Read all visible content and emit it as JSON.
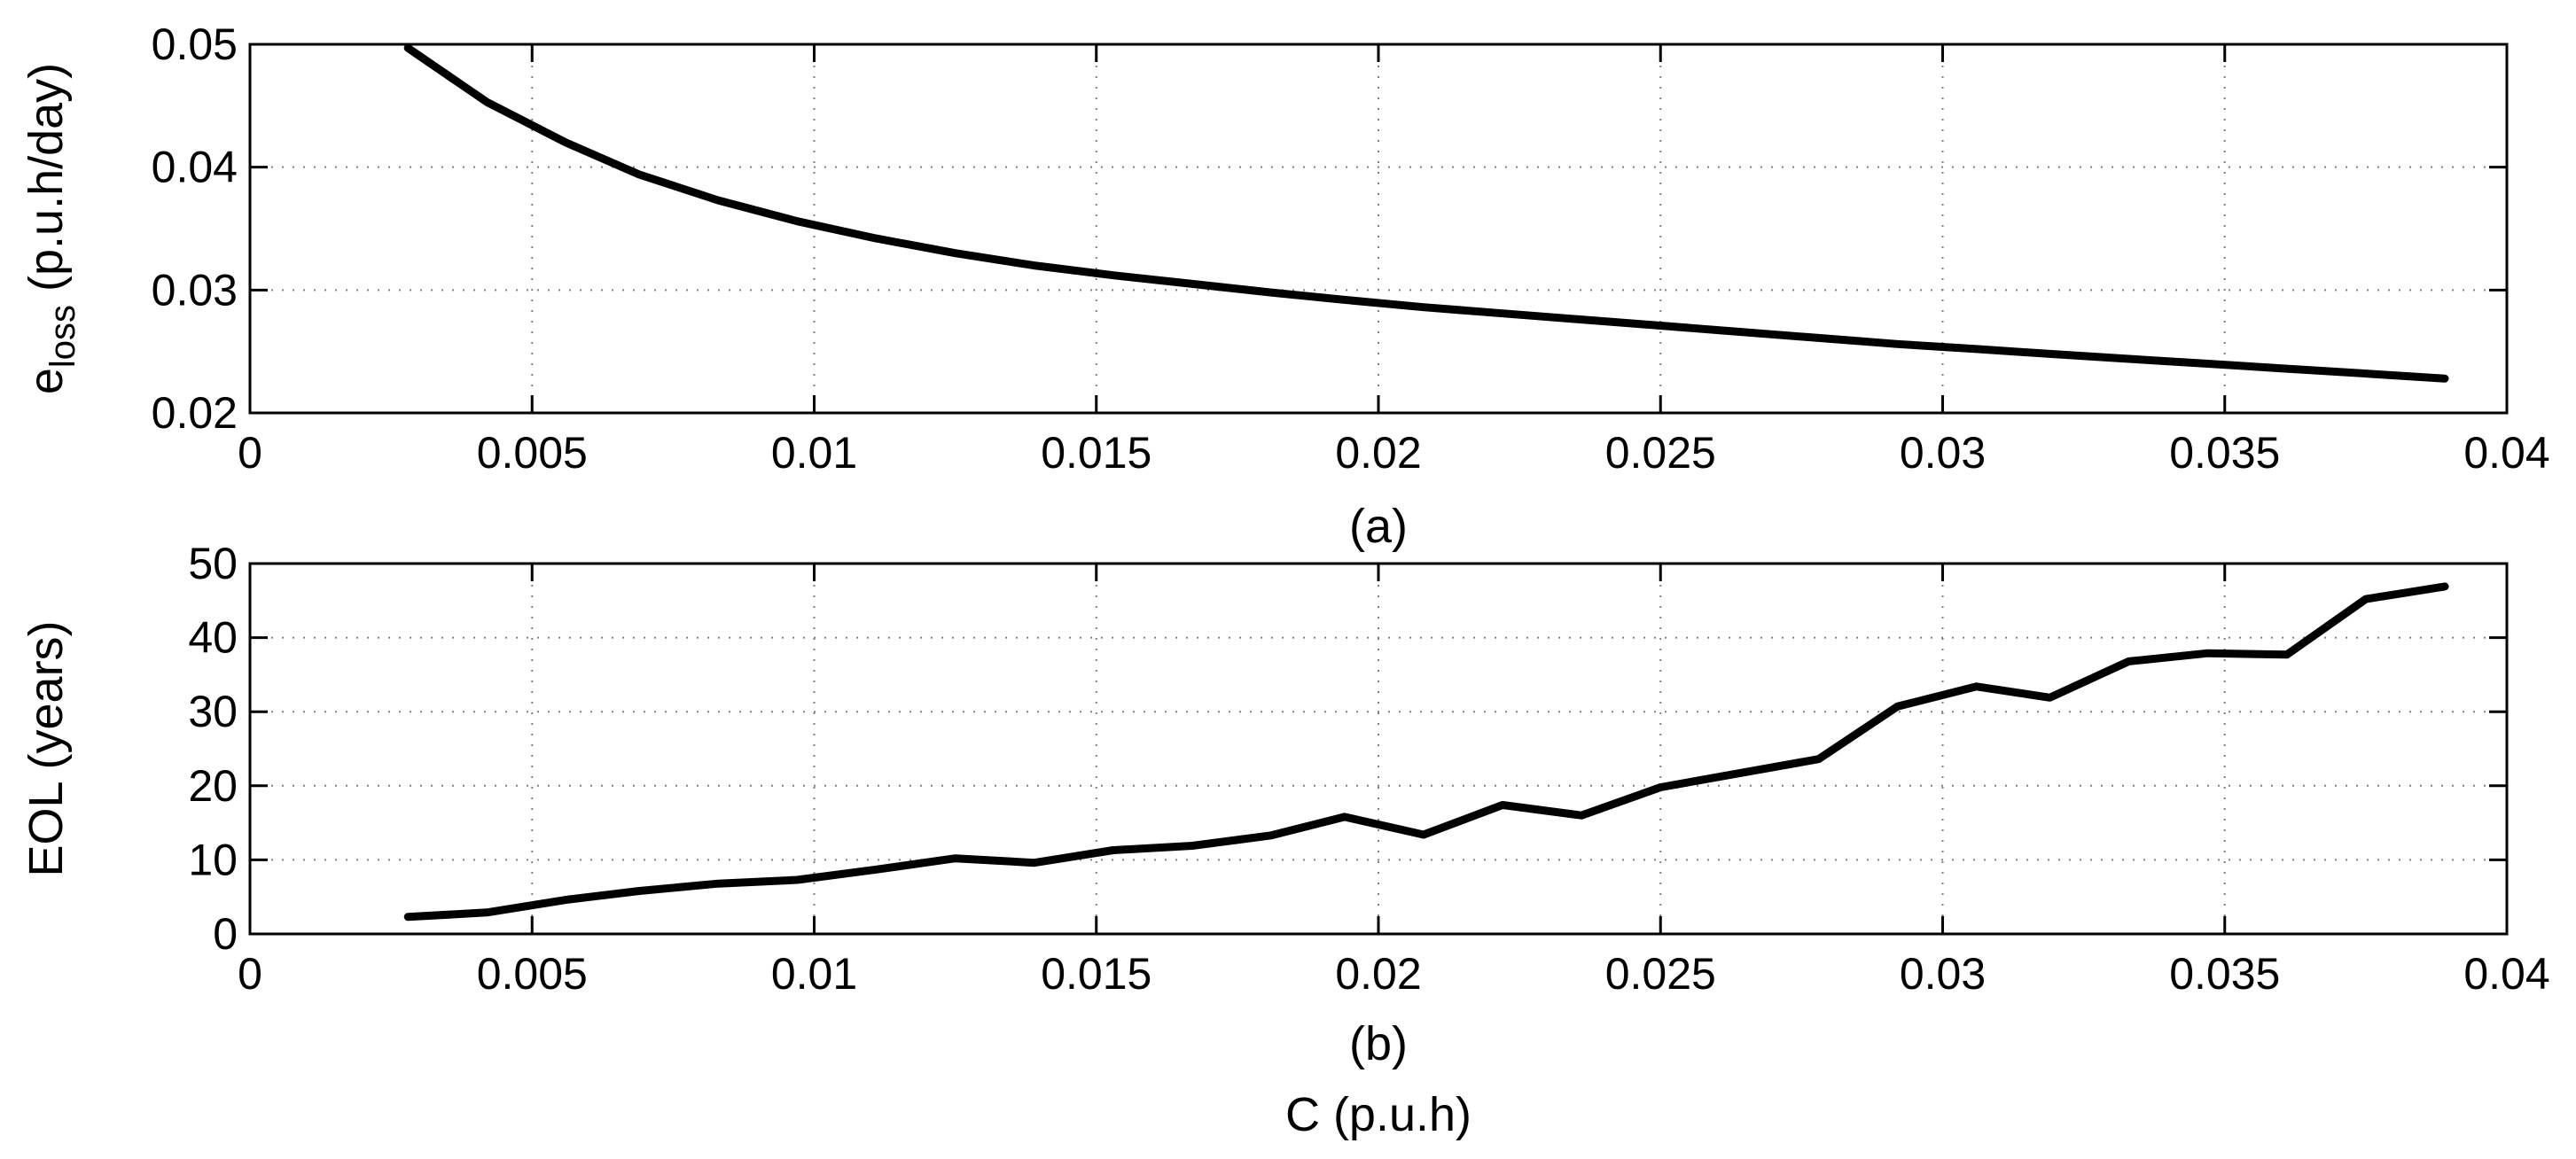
{
  "chart_data": [
    {
      "type": "line",
      "caption": "(a)",
      "ylabel_main": "e",
      "ylabel_sub": "loss",
      "ylabel_unit": " (p.u.h/day)",
      "xlim": [
        0,
        0.04
      ],
      "ylim": [
        0.02,
        0.05
      ],
      "xticks": [
        0,
        0.005,
        0.01,
        0.015,
        0.02,
        0.025,
        0.03,
        0.035,
        0.04
      ],
      "xtick_labels": [
        "0",
        "0.005",
        "0.01",
        "0.015",
        "0.02",
        "0.025",
        "0.03",
        "0.035",
        "0.04"
      ],
      "yticks": [
        0.02,
        0.03,
        0.04,
        0.05
      ],
      "ytick_labels": [
        "0.02",
        "0.03",
        "0.04",
        "0.05"
      ],
      "grid": true,
      "color": "#000000",
      "x": [
        0.0028,
        0.0042,
        0.0056,
        0.0069,
        0.0083,
        0.0097,
        0.0111,
        0.0125,
        0.0139,
        0.0153,
        0.0167,
        0.0181,
        0.0194,
        0.0208,
        0.0222,
        0.0236,
        0.025,
        0.0264,
        0.0278,
        0.0292,
        0.0306,
        0.0319,
        0.0333,
        0.0347,
        0.0361,
        0.0375,
        0.0389
      ],
      "y": [
        0.0497,
        0.0453,
        0.042,
        0.0394,
        0.0373,
        0.0356,
        0.0342,
        0.033,
        0.032,
        0.0312,
        0.0305,
        0.0298,
        0.0292,
        0.0286,
        0.0281,
        0.0276,
        0.0271,
        0.0266,
        0.0261,
        0.0256,
        0.0252,
        0.0248,
        0.0244,
        0.024,
        0.0236,
        0.0232,
        0.0228
      ]
    },
    {
      "type": "line",
      "caption": "(b)",
      "xlabel": "C (p.u.h)",
      "ylabel": "EOL (years)",
      "xlim": [
        0,
        0.04
      ],
      "ylim": [
        0,
        50
      ],
      "xticks": [
        0,
        0.005,
        0.01,
        0.015,
        0.02,
        0.025,
        0.03,
        0.035,
        0.04
      ],
      "xtick_labels": [
        "0",
        "0.005",
        "0.01",
        "0.015",
        "0.02",
        "0.025",
        "0.03",
        "0.035",
        "0.04"
      ],
      "yticks": [
        0,
        10,
        20,
        30,
        40,
        50
      ],
      "ytick_labels": [
        "0",
        "10",
        "20",
        "30",
        "40",
        "50"
      ],
      "grid": true,
      "color": "#000000",
      "x": [
        0.0028,
        0.0042,
        0.0056,
        0.0069,
        0.0083,
        0.0097,
        0.0111,
        0.0125,
        0.0139,
        0.0153,
        0.0167,
        0.0181,
        0.0194,
        0.0208,
        0.0222,
        0.0236,
        0.025,
        0.0264,
        0.0278,
        0.0292,
        0.0306,
        0.0319,
        0.0333,
        0.0347,
        0.0361,
        0.0375,
        0.0389
      ],
      "y": [
        2.3,
        2.9,
        4.6,
        5.8,
        6.8,
        7.3,
        8.7,
        10.2,
        9.6,
        11.3,
        11.9,
        13.3,
        15.8,
        13.4,
        17.4,
        16.0,
        19.8,
        21.7,
        23.6,
        30.7,
        33.4,
        31.9,
        36.8,
        37.9,
        37.7,
        45.2,
        46.9
      ]
    }
  ]
}
